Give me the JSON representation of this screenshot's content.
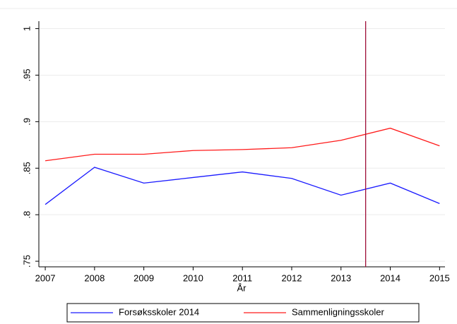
{
  "chart_data": {
    "type": "line",
    "x": [
      2007,
      2008,
      2009,
      2010,
      2011,
      2012,
      2013,
      2014,
      2015
    ],
    "series": [
      {
        "name": "Forsøksskoler 2014",
        "color": "#1a1aff",
        "values": [
          0.811,
          0.851,
          0.834,
          0.84,
          0.846,
          0.839,
          0.821,
          0.834,
          0.812
        ]
      },
      {
        "name": "Sammenligningsskoler",
        "color": "#ff1a1a",
        "values": [
          0.858,
          0.865,
          0.865,
          0.869,
          0.87,
          0.872,
          0.88,
          0.893,
          0.874
        ]
      }
    ],
    "xlabel": "År",
    "xlim": [
      2006.87,
      2015.11
    ],
    "xticks": [
      2007,
      2008,
      2009,
      2010,
      2011,
      2012,
      2013,
      2014,
      2015
    ],
    "ylim": [
      0.744,
      1.008
    ],
    "yticks": [
      {
        "value": 0.75,
        "label": ".75"
      },
      {
        "value": 0.8,
        "label": ".8"
      },
      {
        "value": 0.85,
        "label": ".85"
      },
      {
        "value": 0.9,
        "label": ".9"
      },
      {
        "value": 0.95,
        "label": ".95"
      },
      1
    ],
    "vline": {
      "x": 2013.5,
      "color": "#a0103a"
    },
    "grid": true,
    "legend": "bottom"
  }
}
